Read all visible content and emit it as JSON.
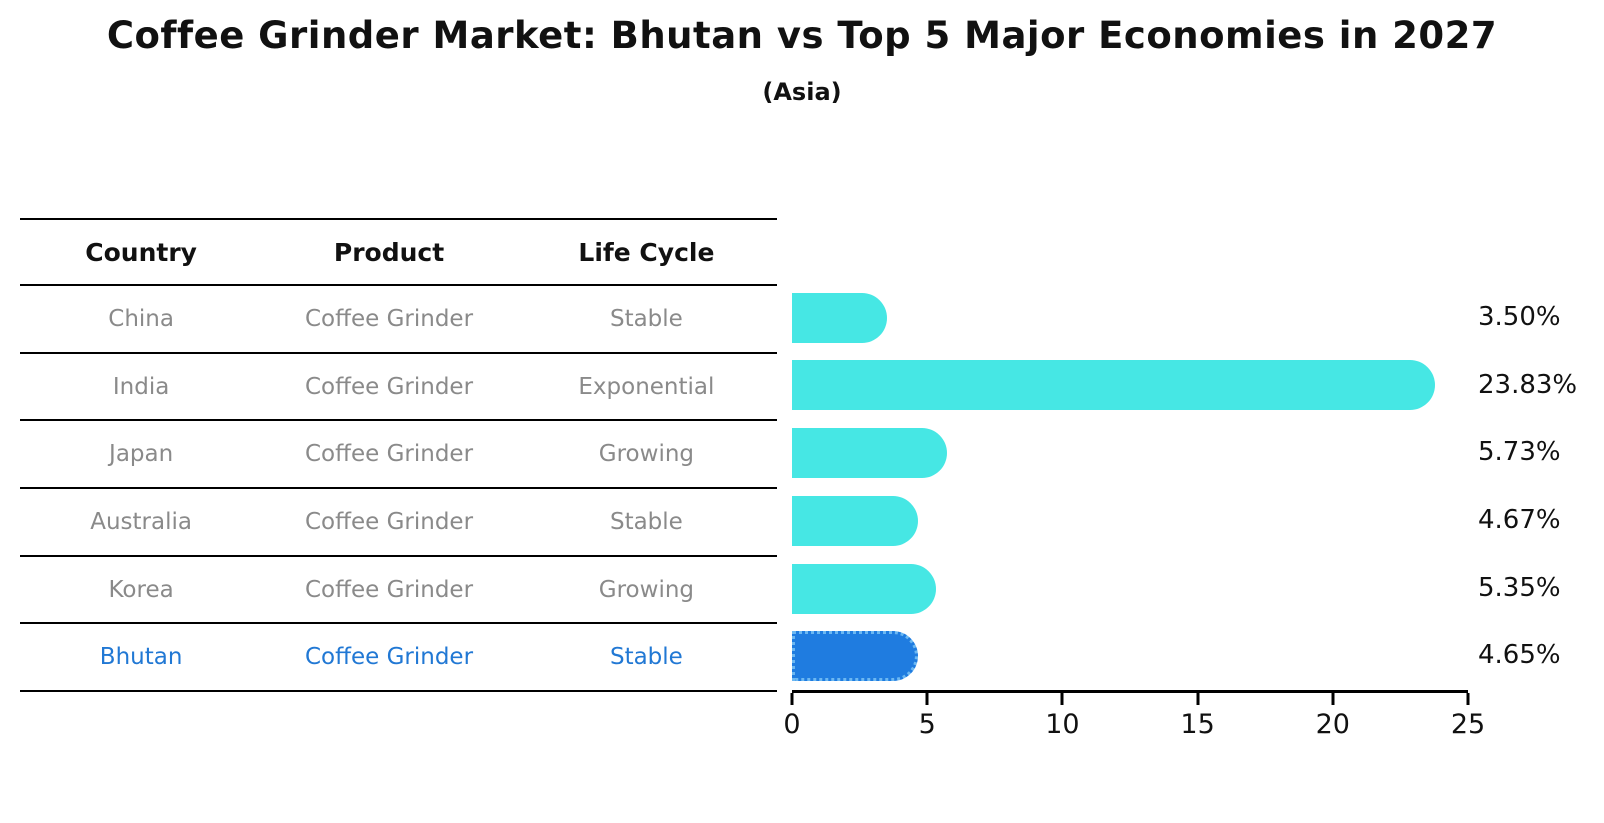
{
  "title": "Coffee Grinder Market: Bhutan vs Top 5 Major Economies in 2027",
  "subtitle": "(Asia)",
  "table": {
    "headers": [
      "Country",
      "Product",
      "Life Cycle"
    ],
    "rows": [
      {
        "country": "China",
        "product": "Coffee Grinder",
        "life_cycle": "Stable",
        "highlight": false
      },
      {
        "country": "India",
        "product": "Coffee Grinder",
        "life_cycle": "Exponential",
        "highlight": false
      },
      {
        "country": "Japan",
        "product": "Coffee Grinder",
        "life_cycle": "Growing",
        "highlight": false
      },
      {
        "country": "Australia",
        "product": "Coffee Grinder",
        "life_cycle": "Stable",
        "highlight": false
      },
      {
        "country": "Korea",
        "product": "Coffee Grinder",
        "life_cycle": "Growing",
        "highlight": false
      },
      {
        "country": "Bhutan",
        "product": "Coffee Grinder",
        "life_cycle": "Stable",
        "highlight": true
      }
    ]
  },
  "chart_data": {
    "type": "bar",
    "orientation": "horizontal",
    "title": "Coffee Grinder Market: Bhutan vs Top 5 Major Economies in 2027",
    "subtitle": "(Asia)",
    "categories": [
      "China",
      "India",
      "Japan",
      "Australia",
      "Korea",
      "Bhutan"
    ],
    "values": [
      3.5,
      23.83,
      5.73,
      4.67,
      5.35,
      4.65
    ],
    "value_labels": [
      "3.50%",
      "23.83%",
      "5.73%",
      "4.67%",
      "5.35%",
      "4.65%"
    ],
    "x_ticks": [
      0,
      5,
      10,
      15,
      20,
      25
    ],
    "xlim": [
      0,
      25
    ],
    "grid": false,
    "legend": false,
    "bar_color": "#46e7e4",
    "highlight_bar_color": "#1f7ce0",
    "highlight_border_color": "#6cb8f2",
    "highlight_index": 5
  },
  "colors": {
    "text_primary": "#111111",
    "text_muted": "#8a8a8a",
    "highlight_text": "#2178d4",
    "axis": "#000000",
    "background": "#ffffff"
  }
}
